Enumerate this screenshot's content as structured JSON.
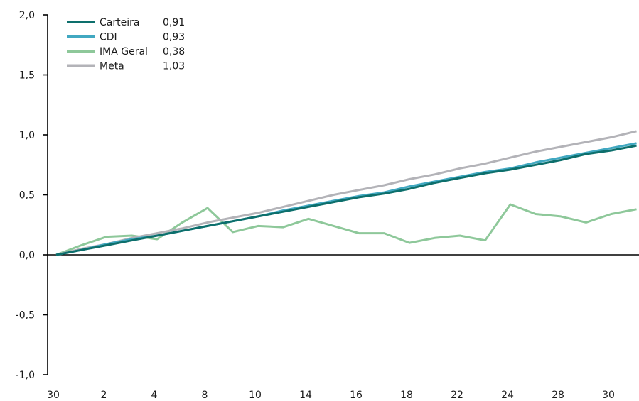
{
  "chart_data": {
    "type": "line",
    "title": "",
    "xlabel": "",
    "ylabel": "",
    "ylim": [
      -1.0,
      2.0
    ],
    "yticks": [
      "2,0",
      "1,5",
      "1,0",
      "0,5",
      "0,0",
      "-0,5",
      "-1,0"
    ],
    "ytick_values": [
      2.0,
      1.5,
      1.0,
      0.5,
      0.0,
      -0.5,
      -1.0
    ],
    "x": [
      0,
      1,
      2,
      3,
      4,
      5,
      6,
      7,
      8,
      9,
      10,
      11,
      12,
      13,
      14,
      15,
      16,
      17,
      18,
      19,
      20,
      21,
      22,
      23
    ],
    "x_tick_labels": [
      "30",
      "2",
      "4",
      "8",
      "10",
      "14",
      "16",
      "18",
      "22",
      "24",
      "28",
      "30"
    ],
    "x_tick_positions": [
      0,
      2,
      4,
      6,
      8,
      10,
      12,
      14,
      16,
      18,
      20,
      22
    ],
    "grid": false,
    "legend_position": "top-left",
    "series": [
      {
        "name": "Carteira",
        "legend_value": "0,91",
        "color": "#0d6f6c",
        "values": [
          0.0,
          0.04,
          0.08,
          0.12,
          0.16,
          0.2,
          0.24,
          0.28,
          0.32,
          0.36,
          0.4,
          0.44,
          0.48,
          0.51,
          0.55,
          0.6,
          0.64,
          0.68,
          0.71,
          0.75,
          0.79,
          0.84,
          0.87,
          0.91
        ]
      },
      {
        "name": "CDI",
        "legend_value": "0,93",
        "color": "#41a8c1",
        "values": [
          0.0,
          0.04,
          0.09,
          0.13,
          0.16,
          0.2,
          0.24,
          0.28,
          0.32,
          0.37,
          0.41,
          0.45,
          0.49,
          0.52,
          0.57,
          0.61,
          0.65,
          0.69,
          0.72,
          0.77,
          0.81,
          0.85,
          0.89,
          0.93
        ]
      },
      {
        "name": "IMA Geral",
        "legend_value": "0,38",
        "color": "#8ec89a",
        "values": [
          0.0,
          0.08,
          0.15,
          0.16,
          0.13,
          0.27,
          0.39,
          0.19,
          0.24,
          0.23,
          0.3,
          0.24,
          0.18,
          0.18,
          0.1,
          0.14,
          0.16,
          0.12,
          0.42,
          0.34,
          0.32,
          0.27,
          0.34,
          0.38
        ]
      },
      {
        "name": "Meta",
        "legend_value": "1,03",
        "color": "#b3b3b8",
        "values": [
          0.0,
          0.05,
          0.09,
          0.14,
          0.18,
          0.22,
          0.27,
          0.31,
          0.35,
          0.4,
          0.45,
          0.5,
          0.54,
          0.58,
          0.63,
          0.67,
          0.72,
          0.76,
          0.81,
          0.86,
          0.9,
          0.94,
          0.98,
          1.03
        ]
      }
    ]
  }
}
